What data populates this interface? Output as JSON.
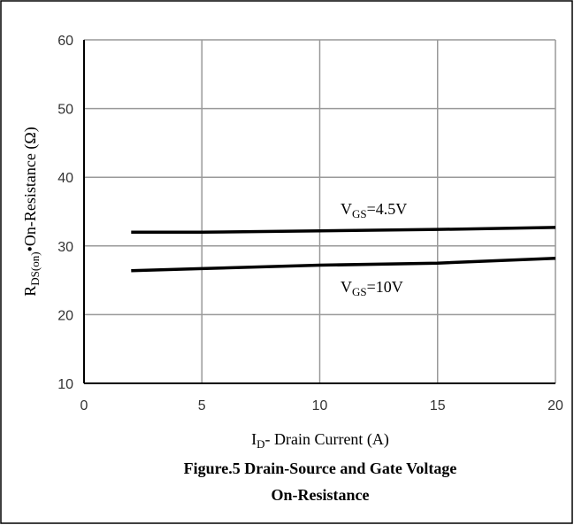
{
  "chart_data": {
    "type": "line",
    "title": [
      "Figure.5 Drain-Source and Gate Voltage",
      "On-Resistance"
    ],
    "xlabel": "ID- Drain Current (A)",
    "ylabel": "RDS(on)•On-Resistance (Ω)",
    "x": [
      2,
      5,
      10,
      15,
      20
    ],
    "series": [
      {
        "name": "VGS=4.5V",
        "color": "#000000",
        "values": [
          32.0,
          32.0,
          32.2,
          32.4,
          32.7
        ]
      },
      {
        "name": "VGS=10V",
        "color": "#000000",
        "values": [
          26.4,
          26.7,
          27.2,
          27.5,
          28.2
        ]
      }
    ],
    "xlim": [
      0,
      20
    ],
    "xticks": [
      0,
      5,
      10,
      15,
      20
    ],
    "ylim": [
      10,
      60
    ],
    "yticks": [
      10,
      20,
      30,
      40,
      50,
      60
    ],
    "grid": true
  }
}
